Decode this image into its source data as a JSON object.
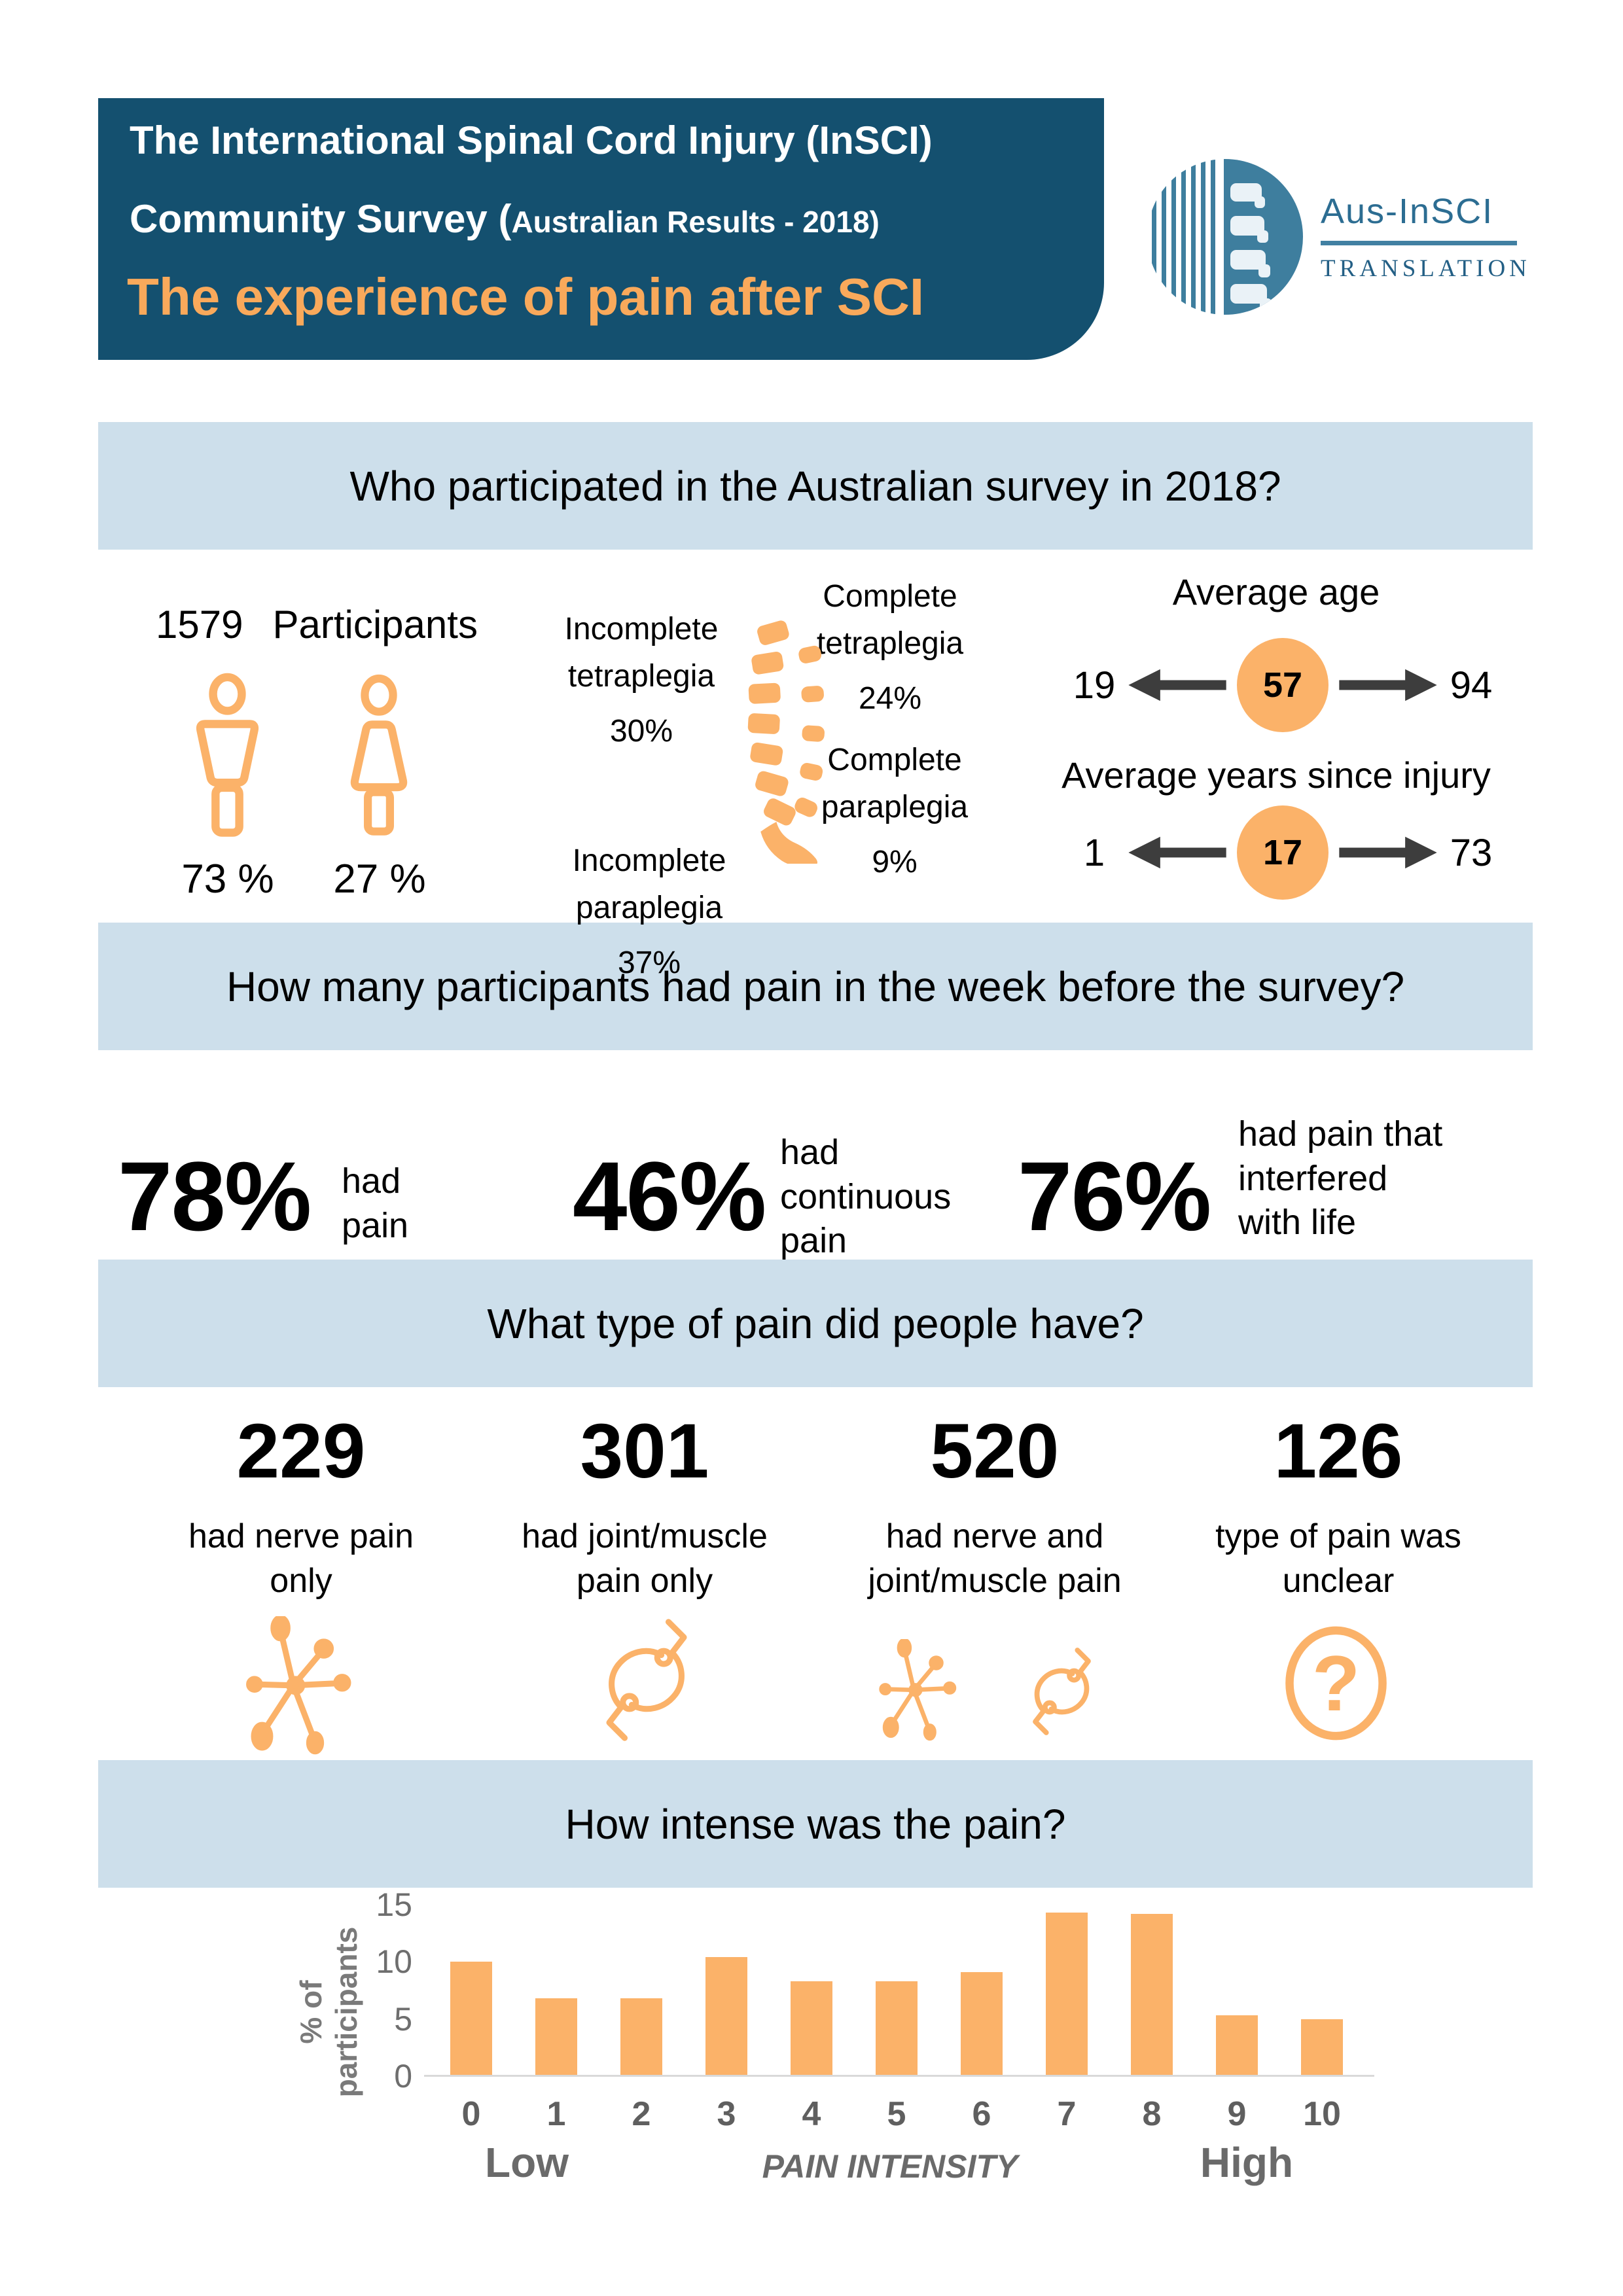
{
  "colors": {
    "header_teal": "#14506F",
    "logo_teal": "#3E7E9E",
    "band_blue": "#CDDFEB",
    "orange": "#FBB269",
    "subtitle_orange": "#F9A95B",
    "arrow_gray": "#3D3D3D"
  },
  "header": {
    "title_line1": "The International Spinal Cord Injury (InSCI)",
    "title_line2_main": "Community Survey (",
    "title_line2_small": "Australian Results - 2018)",
    "subtitle": "The experience of pain after SCI",
    "logo": {
      "name": "Aus-InSCI",
      "sub": "TRANSLATION"
    }
  },
  "sections": {
    "participants": {
      "heading": "Who participated in the Australian survey in 2018?",
      "count": "1579",
      "count_label": "Participants",
      "male_pct": "73 %",
      "female_pct": "27 %",
      "plegia": [
        {
          "label": "Incomplete\ntetraplegia",
          "value": "30%"
        },
        {
          "label": "Complete\ntetraplegia",
          "value": "24%"
        },
        {
          "label": "Incomplete\nparaplegia",
          "value": "37%"
        },
        {
          "label": "Complete\nparaplegia",
          "value": "9%"
        }
      ],
      "average_age": {
        "title": "Average age",
        "min": "19",
        "avg": "57",
        "max": "94"
      },
      "years_since_injury": {
        "title": "Average years since injury",
        "min": "1",
        "avg": "17",
        "max": "73"
      }
    },
    "pain_week": {
      "heading": "How many participants had pain in the week before the survey?",
      "stats": [
        {
          "pct": "78%",
          "label": "had\npain"
        },
        {
          "pct": "46%",
          "label": "had\ncontinuous\npain"
        },
        {
          "pct": "76%",
          "label": "had pain that\ninterfered\nwith life"
        }
      ]
    },
    "pain_type": {
      "heading": "What type of pain did people have?",
      "cards": [
        {
          "value": "229",
          "label": "had nerve pain\nonly",
          "icon": "nerve-icon"
        },
        {
          "value": "301",
          "label": "had joint/muscle\npain only",
          "icon": "joint-icon"
        },
        {
          "value": "520",
          "label": "had nerve and\njoint/muscle pain",
          "icon": "nerve-and-joint-icons"
        },
        {
          "value": "126",
          "label": "type of pain was\nunclear",
          "icon": "question-icon"
        }
      ]
    }
  },
  "chart_data": {
    "type": "bar",
    "title": "How intense was the pain?",
    "categories": [
      "0",
      "1",
      "2",
      "3",
      "4",
      "5",
      "6",
      "7",
      "8",
      "9",
      "10"
    ],
    "values": [
      10,
      6.8,
      6.8,
      10.4,
      8.3,
      8.3,
      9.1,
      14.3,
      14.2,
      5.3,
      5.0
    ],
    "xlabel": "PAIN INTENSITY",
    "xlabel_low": "Low",
    "xlabel_high": "High",
    "ylabel": "% of participants",
    "yticks": [
      0,
      5,
      10,
      15
    ],
    "ylim": [
      0,
      15
    ],
    "grid": false,
    "legend_position": "none",
    "bar_color": "#FBB269"
  }
}
